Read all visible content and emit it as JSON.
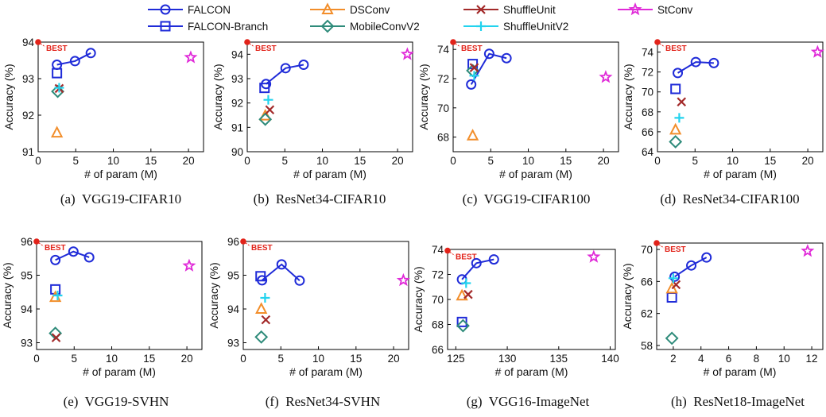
{
  "legend": [
    {
      "name": "FALCON",
      "marker": "circle",
      "color": "#1f2bd8"
    },
    {
      "name": "FALCON-Branch",
      "marker": "square",
      "color": "#1f2bd8"
    },
    {
      "name": "DSConv",
      "marker": "triangle",
      "color": "#f28e2b"
    },
    {
      "name": "MobileConvV2",
      "marker": "diamond",
      "color": "#2e8b7a"
    },
    {
      "name": "ShuffleUnit",
      "marker": "x",
      "color": "#a32a2a"
    },
    {
      "name": "ShuffleUnitV2",
      "marker": "plus",
      "color": "#22d3ee"
    },
    {
      "name": "StConv",
      "marker": "star",
      "color": "#e02ad8"
    }
  ],
  "best_label": "BEST",
  "best_color": "#e2231a",
  "chart_data": [
    {
      "type": "scatter",
      "caption": "(a)  VGG19-CIFAR10",
      "xlabel": "# of param (M)",
      "ylabel": "Accuracy (%)",
      "xlim": [
        0,
        22
      ],
      "ylim": [
        91,
        94
      ],
      "xticks": [
        0,
        5,
        10,
        15,
        20
      ],
      "yticks": [
        91,
        92,
        93,
        94
      ],
      "best": [
        0,
        94.0
      ],
      "series": [
        {
          "name": "FALCON",
          "x": [
            2.5,
            4.9,
            7.0
          ],
          "y": [
            93.38,
            93.48,
            93.7
          ]
        },
        {
          "name": "FALCON-Branch",
          "x": [
            2.5
          ],
          "y": [
            93.15
          ]
        },
        {
          "name": "DSConv",
          "x": [
            2.5
          ],
          "y": [
            91.52
          ]
        },
        {
          "name": "MobileConvV2",
          "x": [
            2.6
          ],
          "y": [
            92.65
          ]
        },
        {
          "name": "ShuffleUnit",
          "x": [
            2.8
          ],
          "y": [
            92.73
          ]
        },
        {
          "name": "ShuffleUnitV2",
          "x": [
            2.8
          ],
          "y": [
            92.75
          ]
        },
        {
          "name": "StConv",
          "x": [
            20.3
          ],
          "y": [
            93.58
          ]
        }
      ]
    },
    {
      "type": "scatter",
      "caption": "(b)  ResNet34-CIFAR10",
      "xlabel": "# of param (M)",
      "ylabel": "Accuracy (%)",
      "xlim": [
        0,
        22
      ],
      "ylim": [
        90,
        94.5
      ],
      "xticks": [
        0,
        5,
        10,
        15,
        20
      ],
      "yticks": [
        90,
        91,
        92,
        93,
        94
      ],
      "best": [
        0,
        94.5
      ],
      "series": [
        {
          "name": "FALCON",
          "x": [
            2.5,
            5.1,
            7.5
          ],
          "y": [
            92.78,
            93.43,
            93.57
          ]
        },
        {
          "name": "FALCON-Branch",
          "x": [
            2.3
          ],
          "y": [
            92.62
          ]
        },
        {
          "name": "DSConv",
          "x": [
            2.4
          ],
          "y": [
            91.48
          ]
        },
        {
          "name": "MobileConvV2",
          "x": [
            2.4
          ],
          "y": [
            91.33
          ]
        },
        {
          "name": "ShuffleUnit",
          "x": [
            3.0
          ],
          "y": [
            91.72
          ]
        },
        {
          "name": "ShuffleUnitV2",
          "x": [
            2.8
          ],
          "y": [
            92.13
          ]
        },
        {
          "name": "StConv",
          "x": [
            21.3
          ],
          "y": [
            94.0
          ]
        }
      ]
    },
    {
      "type": "scatter",
      "caption": "(c)  VGG19-CIFAR100",
      "xlabel": "# of param (M)",
      "ylabel": "Accuracy (%)",
      "xlim": [
        0,
        22
      ],
      "ylim": [
        67,
        74.5
      ],
      "xticks": [
        0,
        5,
        10,
        15,
        20
      ],
      "yticks": [
        68,
        70,
        72,
        74
      ],
      "best": [
        0,
        74.5
      ],
      "series": [
        {
          "name": "FALCON",
          "x": [
            2.4,
            4.8,
            7.1
          ],
          "y": [
            71.6,
            73.7,
            73.4
          ]
        },
        {
          "name": "FALCON-Branch",
          "x": [
            2.6
          ],
          "y": [
            73.0
          ]
        },
        {
          "name": "DSConv",
          "x": [
            2.6
          ],
          "y": [
            68.1
          ]
        },
        {
          "name": "MobileConvV2",
          "x": [
            2.6
          ],
          "y": [
            72.55
          ]
        },
        {
          "name": "ShuffleUnit",
          "x": [
            2.8
          ],
          "y": [
            72.75
          ]
        },
        {
          "name": "ShuffleUnitV2",
          "x": [
            2.8
          ],
          "y": [
            72.2
          ]
        },
        {
          "name": "StConv",
          "x": [
            20.3
          ],
          "y": [
            72.1
          ]
        }
      ]
    },
    {
      "type": "scatter",
      "caption": "(d)  ResNet34-CIFAR100",
      "xlabel": "# of param (M)",
      "ylabel": "Accuracy (%)",
      "xlim": [
        0,
        22
      ],
      "ylim": [
        64,
        75
      ],
      "xticks": [
        0,
        5,
        10,
        15,
        20
      ],
      "yticks": [
        64,
        66,
        68,
        70,
        72,
        74
      ],
      "best": [
        0,
        75.0
      ],
      "series": [
        {
          "name": "FALCON",
          "x": [
            2.7,
            5.1,
            7.5
          ],
          "y": [
            71.9,
            73.0,
            72.9
          ]
        },
        {
          "name": "FALCON-Branch",
          "x": [
            2.4
          ],
          "y": [
            70.3
          ]
        },
        {
          "name": "DSConv",
          "x": [
            2.4
          ],
          "y": [
            66.2
          ]
        },
        {
          "name": "MobileConvV2",
          "x": [
            2.4
          ],
          "y": [
            65.0
          ]
        },
        {
          "name": "ShuffleUnit",
          "x": [
            3.2
          ],
          "y": [
            69.0
          ]
        },
        {
          "name": "ShuffleUnitV2",
          "x": [
            2.9
          ],
          "y": [
            67.4
          ]
        },
        {
          "name": "StConv",
          "x": [
            21.3
          ],
          "y": [
            74.0
          ]
        }
      ]
    },
    {
      "type": "scatter",
      "caption": "(e)  VGG19-SVHN",
      "xlabel": "# of param (M)",
      "ylabel": "Accuracy (%)",
      "xlim": [
        0,
        22
      ],
      "ylim": [
        92.8,
        96
      ],
      "xticks": [
        0,
        5,
        10,
        15,
        20
      ],
      "yticks": [
        93,
        94,
        95,
        96
      ],
      "best": [
        0,
        96.0
      ],
      "series": [
        {
          "name": "FALCON",
          "x": [
            2.5,
            4.9,
            7.0
          ],
          "y": [
            95.45,
            95.7,
            95.53
          ]
        },
        {
          "name": "FALCON-Branch",
          "x": [
            2.5
          ],
          "y": [
            94.58
          ]
        },
        {
          "name": "DSConv",
          "x": [
            2.5
          ],
          "y": [
            94.35
          ]
        },
        {
          "name": "MobileConvV2",
          "x": [
            2.5
          ],
          "y": [
            93.28
          ]
        },
        {
          "name": "ShuffleUnit",
          "x": [
            2.6
          ],
          "y": [
            93.15
          ]
        },
        {
          "name": "ShuffleUnitV2",
          "x": [
            2.8
          ],
          "y": [
            94.4
          ]
        },
        {
          "name": "StConv",
          "x": [
            20.3
          ],
          "y": [
            95.28
          ]
        }
      ]
    },
    {
      "type": "scatter",
      "caption": "(f)  ResNet34-SVHN",
      "xlabel": "# of param (M)",
      "ylabel": "Accuracy (%)",
      "xlim": [
        0,
        22
      ],
      "ylim": [
        92.8,
        96
      ],
      "xticks": [
        0,
        5,
        10,
        15,
        20
      ],
      "yticks": [
        93,
        94,
        95,
        96
      ],
      "best": [
        0,
        96.0
      ],
      "series": [
        {
          "name": "FALCON",
          "x": [
            2.5,
            5.1,
            7.5
          ],
          "y": [
            94.85,
            95.32,
            94.84
          ]
        },
        {
          "name": "FALCON-Branch",
          "x": [
            2.3
          ],
          "y": [
            94.97
          ]
        },
        {
          "name": "DSConv",
          "x": [
            2.4
          ],
          "y": [
            94.0
          ]
        },
        {
          "name": "MobileConvV2",
          "x": [
            2.4
          ],
          "y": [
            93.17
          ]
        },
        {
          "name": "ShuffleUnit",
          "x": [
            3.0
          ],
          "y": [
            93.68
          ]
        },
        {
          "name": "ShuffleUnitV2",
          "x": [
            2.9
          ],
          "y": [
            94.33
          ]
        },
        {
          "name": "StConv",
          "x": [
            21.3
          ],
          "y": [
            94.85
          ]
        }
      ]
    },
    {
      "type": "scatter",
      "caption": "(g)  VGG16-ImageNet",
      "xlabel": "# of param (M)",
      "ylabel": "Accuracy (%)",
      "xlim": [
        124.2,
        140.5
      ],
      "ylim": [
        66,
        74
      ],
      "xticks": [
        125,
        130,
        135,
        140
      ],
      "yticks": [
        66,
        68,
        70,
        72,
        74
      ],
      "best": [
        124.2,
        73.9
      ],
      "series": [
        {
          "name": "FALCON",
          "x": [
            125.6,
            127.0,
            128.7
          ],
          "y": [
            71.6,
            72.9,
            73.2
          ]
        },
        {
          "name": "FALCON-Branch",
          "x": [
            125.6
          ],
          "y": [
            68.2
          ]
        },
        {
          "name": "DSConv",
          "x": [
            125.6
          ],
          "y": [
            70.3
          ]
        },
        {
          "name": "MobileConvV2",
          "x": [
            125.7
          ],
          "y": [
            67.9
          ]
        },
        {
          "name": "ShuffleUnit",
          "x": [
            126.2
          ],
          "y": [
            70.4
          ]
        },
        {
          "name": "ShuffleUnitV2",
          "x": [
            126.0
          ],
          "y": [
            71.3
          ]
        },
        {
          "name": "StConv",
          "x": [
            138.4
          ],
          "y": [
            73.4
          ]
        }
      ]
    },
    {
      "type": "scatter",
      "caption": "(h)  ResNet18-ImageNet",
      "xlabel": "# of param (M)",
      "ylabel": "Accuracy (%)",
      "xlim": [
        0.8,
        12.8
      ],
      "ylim": [
        57.5,
        70.8
      ],
      "xticks": [
        2,
        4,
        6,
        8,
        10,
        12
      ],
      "yticks": [
        58,
        62,
        66,
        70
      ],
      "best": [
        0.8,
        70.8
      ],
      "series": [
        {
          "name": "FALCON",
          "x": [
            2.1,
            3.3,
            4.4
          ],
          "y": [
            66.6,
            68.0,
            69.0
          ]
        },
        {
          "name": "FALCON-Branch",
          "x": [
            1.9
          ],
          "y": [
            64.0
          ]
        },
        {
          "name": "DSConv",
          "x": [
            1.9
          ],
          "y": [
            65.1
          ]
        },
        {
          "name": "MobileConvV2",
          "x": [
            1.9
          ],
          "y": [
            58.9
          ]
        },
        {
          "name": "ShuffleUnit",
          "x": [
            2.2
          ],
          "y": [
            65.6
          ]
        },
        {
          "name": "ShuffleUnitV2",
          "x": [
            2.0
          ],
          "y": [
            66.4
          ]
        },
        {
          "name": "StConv",
          "x": [
            11.7
          ],
          "y": [
            69.8
          ]
        }
      ]
    }
  ]
}
